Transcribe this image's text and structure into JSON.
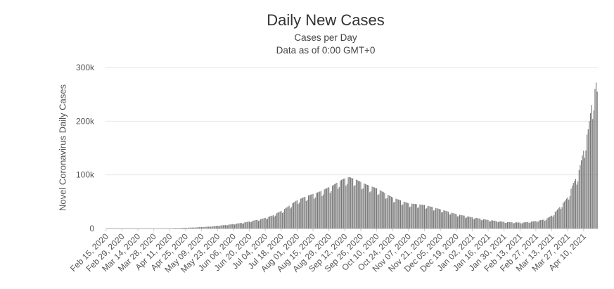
{
  "chart_data": {
    "type": "bar",
    "title": "Daily New Cases",
    "subtitle_lines": [
      "Cases per Day",
      "Data as of 0:00 GMT+0"
    ],
    "xlabel": "",
    "ylabel": "Novel Coronavirus Daily Cases",
    "ylim": [
      0,
      300000
    ],
    "yticks": [
      {
        "value": 0,
        "label": "0"
      },
      {
        "value": 100000,
        "label": "100k"
      },
      {
        "value": 200000,
        "label": "200k"
      },
      {
        "value": 300000,
        "label": "300k"
      }
    ],
    "x_start": "2020-02-15",
    "x_end": "2021-04-22",
    "x_tick_labels": [
      "Feb 15, 2020",
      "Feb 29, 2020",
      "Mar 14, 2020",
      "Mar 28, 2020",
      "Apr 11, 2020",
      "Apr 25, 2020",
      "May 09, 2020",
      "May 23, 2020",
      "Jun 06, 2020",
      "Jun 20, 2020",
      "Jul 04, 2020",
      "Jul 18, 2020",
      "Aug 01, 2020",
      "Aug 15, 2020",
      "Aug 29, 2020",
      "Sep 12, 2020",
      "Sep 26, 2020",
      "Oct 10, 2020",
      "Oct 24, 2020",
      "Nov 07, 2020",
      "Nov 21, 2020",
      "Dec 05, 2020",
      "Dec 19, 2020",
      "Jan 02, 2021",
      "Jan 16, 2021",
      "Jan 30, 2021",
      "Feb 13, 2021",
      "Feb 27, 2021",
      "Mar 13, 2021",
      "Mar 27, 2021",
      "Apr 10, 2021"
    ],
    "series_points": [
      [
        "2020-02-15",
        0
      ],
      [
        "2020-03-01",
        5
      ],
      [
        "2020-03-15",
        30
      ],
      [
        "2020-04-01",
        150
      ],
      [
        "2020-04-15",
        900
      ],
      [
        "2020-05-01",
        1800
      ],
      [
        "2020-05-15",
        3500
      ],
      [
        "2020-06-01",
        7000
      ],
      [
        "2020-06-15",
        11000
      ],
      [
        "2020-07-01",
        18000
      ],
      [
        "2020-07-10",
        24000
      ],
      [
        "2020-07-20",
        35000
      ],
      [
        "2020-08-01",
        53000
      ],
      [
        "2020-08-10",
        61000
      ],
      [
        "2020-08-20",
        68000
      ],
      [
        "2020-09-01",
        80000
      ],
      [
        "2020-09-10",
        92000
      ],
      [
        "2020-09-16",
        96000
      ],
      [
        "2020-09-22",
        91000
      ],
      [
        "2020-10-01",
        82000
      ],
      [
        "2020-10-10",
        75000
      ],
      [
        "2020-10-24",
        58000
      ],
      [
        "2020-11-07",
        47000
      ],
      [
        "2020-11-21",
        44000
      ],
      [
        "2020-12-05",
        36000
      ],
      [
        "2020-12-19",
        27000
      ],
      [
        "2021-01-02",
        21000
      ],
      [
        "2021-01-16",
        16000
      ],
      [
        "2021-02-01",
        12000
      ],
      [
        "2021-02-15",
        11000
      ],
      [
        "2021-02-27",
        14000
      ],
      [
        "2021-03-07",
        17000
      ],
      [
        "2021-03-13",
        24000
      ],
      [
        "2021-03-20",
        40000
      ],
      [
        "2021-03-27",
        58000
      ],
      [
        "2021-04-01",
        85000
      ],
      [
        "2021-04-05",
        100000
      ],
      [
        "2021-04-10",
        145000
      ],
      [
        "2021-04-14",
        185000
      ],
      [
        "2021-04-17",
        230000
      ],
      [
        "2021-04-20",
        260000
      ],
      [
        "2021-04-21",
        272000
      ],
      [
        "2021-04-22",
        255000
      ]
    ],
    "bar_color": "#777777",
    "grid": true,
    "legend": "none"
  }
}
